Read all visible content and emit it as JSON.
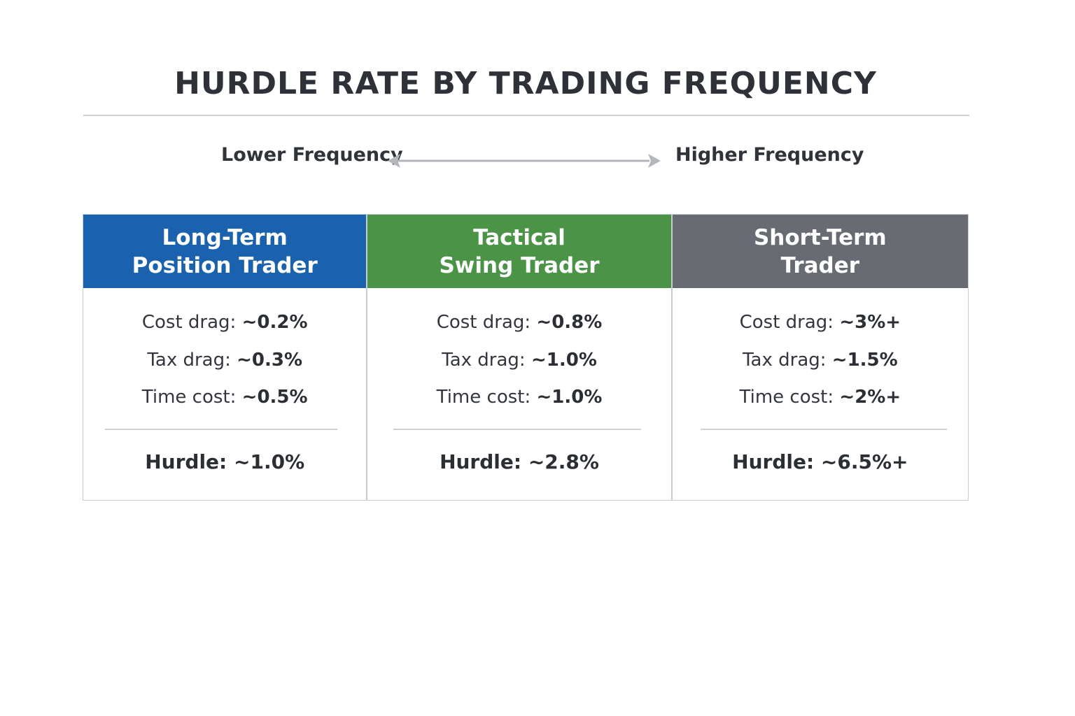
{
  "title": "HURDLE RATE BY TRADING FREQUENCY",
  "frequency": {
    "low_label": "Lower Frequency",
    "high_label": "Higher Frequency"
  },
  "colors": {
    "long_term": "#1a62ad",
    "tactical": "#4a9347",
    "short_term": "#686b71",
    "arrow": "#b3b7bc"
  },
  "columns": [
    {
      "header_line1": "Long-Term",
      "header_line2": "Position Trader",
      "cost_label": "Cost drag: ",
      "cost_value": "~0.2%",
      "tax_label": "Tax drag: ",
      "tax_value": "~0.3%",
      "time_label": "Time cost: ",
      "time_value": "~0.5%",
      "hurdle_label": "Hurdle: ",
      "hurdle_value": "~1.0%"
    },
    {
      "header_line1": "Tactical",
      "header_line2": "Swing Trader",
      "cost_label": "Cost drag: ",
      "cost_value": "~0.8%",
      "tax_label": "Tax drag: ",
      "tax_value": "~1.0%",
      "time_label": "Time cost: ",
      "time_value": "~1.0%",
      "hurdle_label": "Hurdle: ",
      "hurdle_value": "~2.8%"
    },
    {
      "header_line1": "Short-Term",
      "header_line2": "Trader",
      "cost_label": "Cost drag: ",
      "cost_value": "~3%+",
      "tax_label": "Tax drag: ",
      "tax_value": "~1.5%",
      "time_label": "Time cost: ",
      "time_value": "~2%+",
      "hurdle_label": "Hurdle: ",
      "hurdle_value": "~6.5%+"
    }
  ]
}
